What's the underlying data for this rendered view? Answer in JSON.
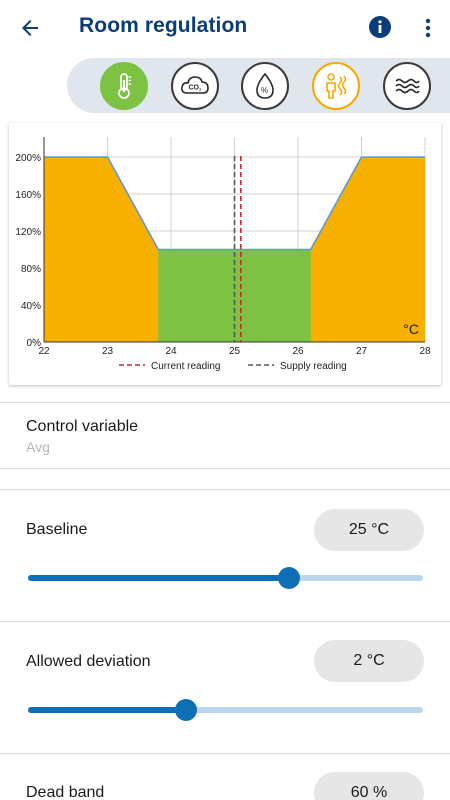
{
  "header": {
    "title": "Room regulation",
    "title_color": "#0a3d7a"
  },
  "modes": [
    {
      "name": "temperature",
      "icon": "thermometer-icon",
      "active": true,
      "color": "#7dc242"
    },
    {
      "name": "co2",
      "icon": "co2-cloud-icon",
      "label": "CO2",
      "active": false
    },
    {
      "name": "humidity",
      "icon": "humidity-drop-icon",
      "label": "%",
      "active": false
    },
    {
      "name": "comfort",
      "icon": "person-heat-icon",
      "active": false,
      "color": "#f7a800"
    },
    {
      "name": "air",
      "icon": "air-flow-icon",
      "active": false
    }
  ],
  "chart_data": {
    "type": "area",
    "x_ticks": [
      "22",
      "23",
      "24",
      "25",
      "26",
      "27",
      "28"
    ],
    "y_ticks": [
      "0%",
      "40%",
      "80%",
      "120%",
      "160%",
      "200%"
    ],
    "xlim": [
      22,
      28
    ],
    "ylim": [
      0,
      200
    ],
    "unit_label": "°C",
    "curve": [
      [
        22,
        200
      ],
      [
        23,
        200
      ],
      [
        23.8,
        100
      ],
      [
        26.2,
        100
      ],
      [
        27,
        200
      ],
      [
        28,
        200
      ]
    ],
    "dead_band": [
      23.8,
      26.2
    ],
    "current_reading": 25.1,
    "supply_reading": 25.0,
    "legend": [
      {
        "label": "Current reading",
        "color": "#c62828"
      },
      {
        "label": "Supply reading",
        "color": "#555555"
      }
    ],
    "colors": {
      "outside": "#f7b000",
      "dead_band": "#7dc242",
      "line": "#5b9bd5"
    }
  },
  "control_variable": {
    "label": "Control variable",
    "value": "Avg"
  },
  "baseline": {
    "label": "Baseline",
    "value": "25 °C",
    "slider_fraction": 0.66
  },
  "allowed_deviation": {
    "label": "Allowed deviation",
    "value": "2 °C",
    "slider_fraction": 0.4
  },
  "dead_band": {
    "label": "Dead band",
    "value": "60 %"
  }
}
